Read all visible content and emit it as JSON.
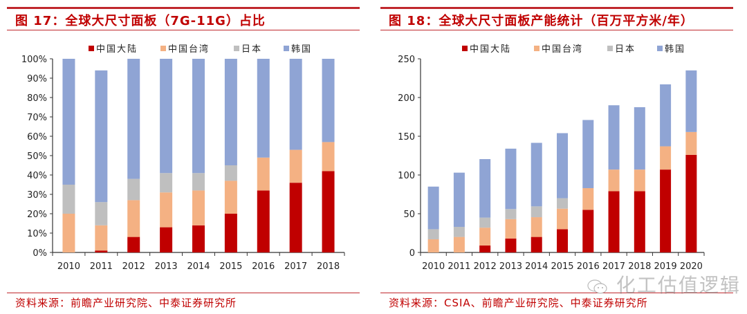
{
  "colors": {
    "mainland": "#c00000",
    "taiwan": "#f4b183",
    "japan": "#bfbfbf",
    "korea": "#8fa4d4",
    "accent_red": "#c0282d"
  },
  "watermark": {
    "text": "化工估值逻辑",
    "icon": "wechat-icon"
  },
  "chart_data": [
    {
      "type": "bar",
      "stacked": true,
      "title": "图 17：全球大尺寸面板（7G-11G）占比",
      "source": "资料来源：前瞻产业研究院、中泰证券研究所",
      "xlabel": "",
      "ylabel": "",
      "ylim": [
        0,
        100
      ],
      "yticks": [
        0,
        10,
        20,
        30,
        40,
        50,
        60,
        70,
        80,
        90,
        100
      ],
      "ytick_labels": [
        "0%",
        "10%",
        "20%",
        "30%",
        "40%",
        "50%",
        "60%",
        "70%",
        "80%",
        "90%",
        "100%"
      ],
      "legend_position": "top",
      "grid": false,
      "categories": [
        "2010",
        "2011",
        "2012",
        "2013",
        "2014",
        "2015",
        "2016",
        "2017",
        "2018"
      ],
      "series": [
        {
          "name": "中国大陆",
          "color_key": "mainland",
          "values": [
            0,
            1,
            8,
            13,
            14,
            20,
            32,
            36,
            42
          ]
        },
        {
          "name": "中国台湾",
          "color_key": "taiwan",
          "values": [
            20,
            13,
            19,
            18,
            18,
            17,
            17,
            17,
            15
          ]
        },
        {
          "name": "日本",
          "color_key": "japan",
          "values": [
            15,
            12,
            11,
            10,
            9,
            8,
            0,
            0,
            0
          ]
        },
        {
          "name": "韩国",
          "color_key": "korea",
          "values": [
            65,
            68,
            62,
            59,
            59,
            55,
            51,
            47,
            43
          ]
        }
      ]
    },
    {
      "type": "bar",
      "stacked": true,
      "title": "图 18：全球大尺寸面板产能统计（百万平方米/年）",
      "source": "资料来源：CSIA、前瞻产业研究院、中泰证券研究所",
      "xlabel": "",
      "ylabel": "",
      "ylim": [
        0,
        250
      ],
      "yticks": [
        0,
        50,
        100,
        150,
        200,
        250
      ],
      "ytick_labels": [
        "0",
        "50",
        "100",
        "150",
        "200",
        "250"
      ],
      "legend_position": "top",
      "grid": false,
      "categories": [
        "2010",
        "2011",
        "2012",
        "2013",
        "2014",
        "2015",
        "2016",
        "2017",
        "2018",
        "2019",
        "2020"
      ],
      "series": [
        {
          "name": "中国大陆",
          "color_key": "mainland",
          "values": [
            0,
            0,
            9,
            18,
            20,
            30,
            55,
            79,
            79,
            107,
            126
          ]
        },
        {
          "name": "中国台湾",
          "color_key": "taiwan",
          "values": [
            17,
            20,
            23,
            25,
            25.5,
            26.5,
            28,
            28,
            28,
            30,
            29.5
          ]
        },
        {
          "name": "日本",
          "color_key": "japan",
          "values": [
            13,
            13,
            13,
            13,
            14,
            13.5,
            0,
            0,
            0,
            0,
            0
          ]
        },
        {
          "name": "韩国",
          "color_key": "korea",
          "values": [
            55,
            70,
            75.5,
            78,
            82,
            84,
            88,
            83,
            80.5,
            80,
            79.5
          ]
        }
      ]
    }
  ]
}
